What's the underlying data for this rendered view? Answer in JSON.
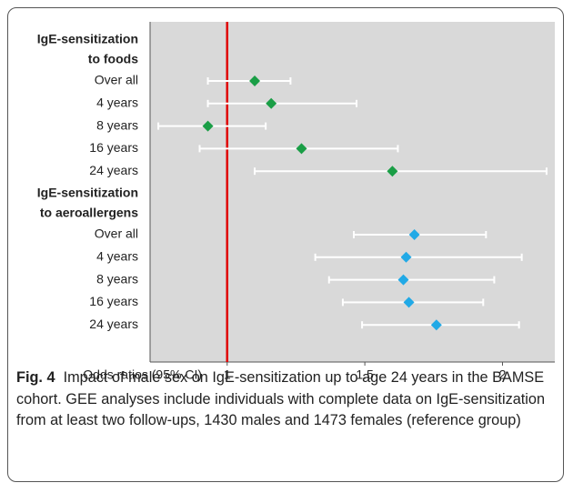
{
  "chart_data": {
    "type": "forest",
    "xlabel": "Odds ratios (95% CI)",
    "xlim": [
      0.72,
      2.19
    ],
    "xticks": [
      1,
      1.5,
      2
    ],
    "reference_line": 1,
    "reference_color": "#e00000",
    "background": "#d9d9d9",
    "groups": [
      {
        "label": [
          "IgE-sensitization",
          "to foods"
        ],
        "color": "#1a9e46",
        "categories": [
          "Over all",
          "4 years",
          "8 years",
          "16 years",
          "24 years"
        ],
        "values": [
          1.1,
          1.16,
          0.93,
          1.27,
          1.6
        ],
        "lower": [
          0.93,
          0.93,
          0.75,
          0.9,
          1.1
        ],
        "upper": [
          1.23,
          1.47,
          1.14,
          1.62,
          2.16
        ]
      },
      {
        "label": [
          "IgE-sensitization",
          "to aeroallergens"
        ],
        "color": "#21a9e6",
        "categories": [
          "Over all",
          "4 years",
          "8 years",
          "16 years",
          "24 years"
        ],
        "values": [
          1.68,
          1.65,
          1.64,
          1.66,
          1.76
        ],
        "lower": [
          1.46,
          1.32,
          1.37,
          1.42,
          1.49
        ],
        "upper": [
          1.94,
          2.07,
          1.97,
          1.93,
          2.06
        ]
      }
    ]
  },
  "caption": {
    "label": "Fig. 4",
    "text": "Impact of male sex on IgE-sensitization up to age 24 years in the BAMSE cohort. GEE analyses include individuals with complete data on IgE-sensitization from at least two follow-ups, 1430 males and 1473 females (reference group)"
  }
}
